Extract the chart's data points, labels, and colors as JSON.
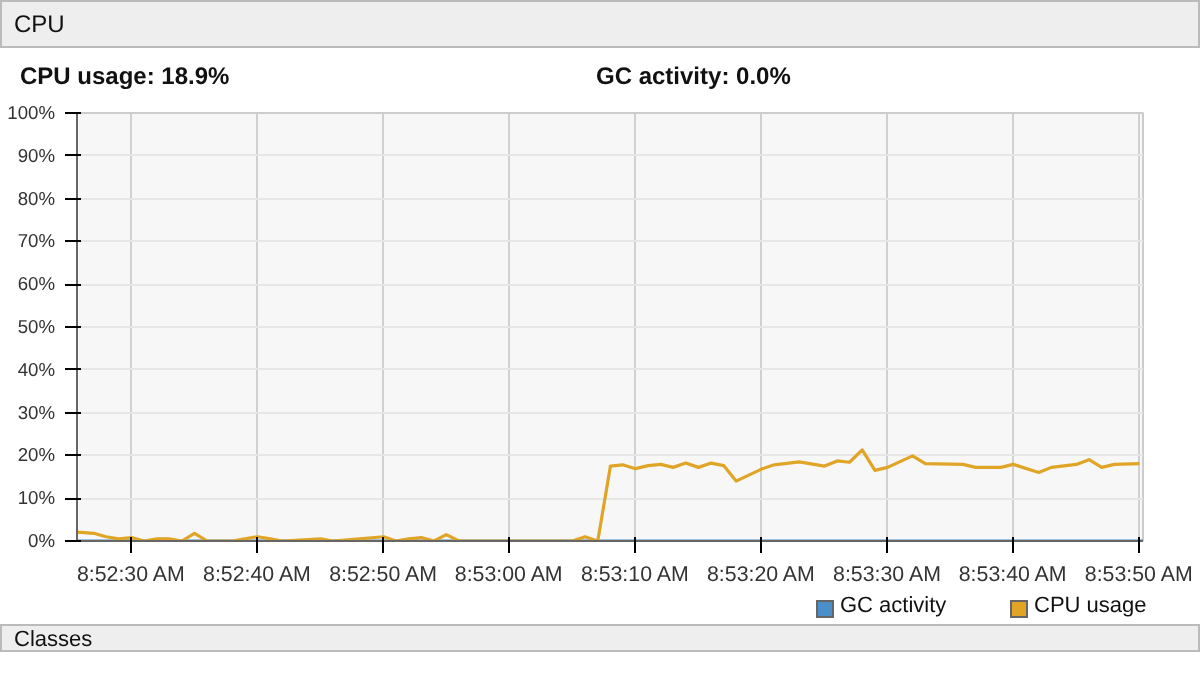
{
  "chart_data": {
    "type": "line",
    "title": "CPU",
    "annotations": [
      "CPU usage: 18.9%",
      "GC activity: 0.0%",
      "Classes"
    ],
    "xlim": [
      8.8738,
      8.8973
    ],
    "ylim": [
      0,
      100
    ],
    "xticks": [
      {
        "value": 8.875,
        "label": "8:52:30 AM"
      },
      {
        "value": 8.87778,
        "label": "8:52:40 AM"
      },
      {
        "value": 8.88056,
        "label": "8:52:50 AM"
      },
      {
        "value": 8.88333,
        "label": "8:53:00 AM"
      },
      {
        "value": 8.88611,
        "label": "8:53:10 AM"
      },
      {
        "value": 8.88889,
        "label": "8:53:20 AM"
      },
      {
        "value": 8.89167,
        "label": "8:53:30 AM"
      },
      {
        "value": 8.89444,
        "label": "8:53:40 AM"
      },
      {
        "value": 8.89722,
        "label": "8:53:50 AM"
      }
    ],
    "yticks": [
      {
        "value": 0,
        "label": "0%"
      },
      {
        "value": 10,
        "label": "10%"
      },
      {
        "value": 20,
        "label": "20%"
      },
      {
        "value": 30,
        "label": "30%"
      },
      {
        "value": 40,
        "label": "40%"
      },
      {
        "value": 50,
        "label": "50%"
      },
      {
        "value": 60,
        "label": "60%"
      },
      {
        "value": 70,
        "label": "70%"
      },
      {
        "value": 80,
        "label": "80%"
      },
      {
        "value": 90,
        "label": "90%"
      },
      {
        "value": 100,
        "label": "100%"
      }
    ],
    "grid": true,
    "legend": "bottom right",
    "series": [
      {
        "name": "GC activity",
        "color": "#4a8fc9",
        "x": [
          8.8738,
          8.8973
        ],
        "values": [
          0,
          0
        ]
      },
      {
        "name": "CPU usage",
        "color": "#e0a526",
        "x": [
          8.8738,
          8.87389,
          8.87417,
          8.87444,
          8.87472,
          8.875,
          8.87528,
          8.87556,
          8.87583,
          8.87611,
          8.87639,
          8.87667,
          8.87722,
          8.87778,
          8.87806,
          8.87833,
          8.87917,
          8.87944,
          8.88056,
          8.88083,
          8.88111,
          8.88139,
          8.88167,
          8.88194,
          8.88222,
          8.88333,
          8.88444,
          8.88472,
          8.885,
          8.88528,
          8.88556,
          8.88583,
          8.88611,
          8.88639,
          8.88667,
          8.88694,
          8.88722,
          8.8875,
          8.88778,
          8.88806,
          8.88833,
          8.88889,
          8.88917,
          8.88972,
          8.89028,
          8.89056,
          8.89083,
          8.89111,
          8.89139,
          8.89167,
          8.89222,
          8.8925,
          8.89333,
          8.89361,
          8.89417,
          8.89444,
          8.895,
          8.89528,
          8.89583,
          8.89611,
          8.89639,
          8.89667,
          8.89722
        ],
        "values": [
          2,
          2,
          1.8,
          1,
          0.5,
          0.8,
          0,
          0.5,
          0.5,
          0,
          1.8,
          0,
          0,
          1,
          0.5,
          0,
          0.5,
          0,
          1,
          0,
          0.5,
          0.8,
          0,
          1.5,
          0,
          0,
          0,
          0,
          1,
          0,
          17.5,
          17.8,
          16.9,
          17.6,
          17.9,
          17.2,
          18.2,
          17.2,
          18.2,
          17.6,
          14,
          16.8,
          17.8,
          18.5,
          17.5,
          18.7,
          18.4,
          21.3,
          16.5,
          17.2,
          19.9,
          18.1,
          17.9,
          17.2,
          17.2,
          17.9,
          16,
          17.2,
          17.9,
          19,
          17.2,
          17.9,
          18.1
        ]
      }
    ]
  }
}
